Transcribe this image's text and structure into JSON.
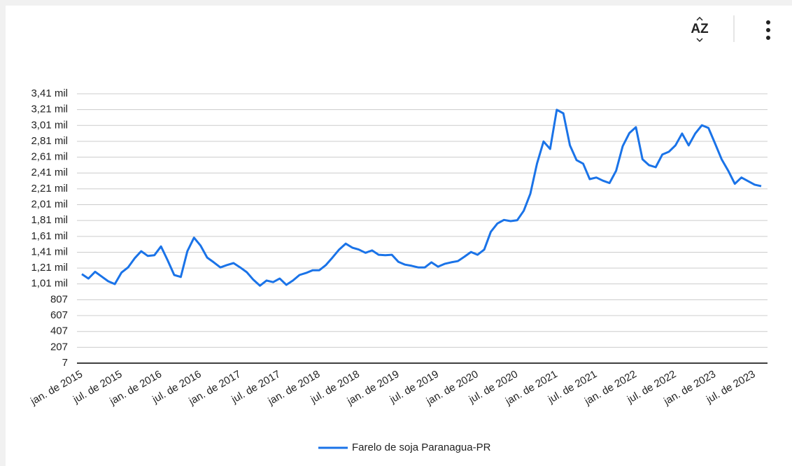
{
  "toolbar": {
    "sort_label": "AZ"
  },
  "chart_data": {
    "type": "line",
    "categories": [
      "jan. de 2015",
      null,
      null,
      null,
      null,
      null,
      "jul. de 2015",
      null,
      null,
      null,
      null,
      null,
      "jan. de 2016",
      null,
      null,
      null,
      null,
      null,
      "jul. de 2016",
      null,
      null,
      null,
      null,
      null,
      "jan. de 2017",
      null,
      null,
      null,
      null,
      null,
      "jul. de 2017",
      null,
      null,
      null,
      null,
      null,
      "jan. de 2018",
      null,
      null,
      null,
      null,
      null,
      "jul. de 2018",
      null,
      null,
      null,
      null,
      null,
      "jan. de 2019",
      null,
      null,
      null,
      null,
      null,
      "jul. de 2019",
      null,
      null,
      null,
      null,
      null,
      "jan. de 2020",
      null,
      null,
      null,
      null,
      null,
      "jul. de 2020",
      null,
      null,
      null,
      null,
      null,
      "jan. de 2021",
      null,
      null,
      null,
      null,
      null,
      "jul. de 2021",
      null,
      null,
      null,
      null,
      null,
      "jan. de 2022",
      null,
      null,
      null,
      null,
      null,
      "jul. de 2022",
      null,
      null,
      null,
      null,
      null,
      "jan. de 2023",
      null,
      null,
      null,
      null,
      null,
      "jul. de 2023",
      null
    ],
    "series": [
      {
        "name": "Farelo de soja Paranagua-PR",
        "color": "#1a73e8",
        "values": [
          1130,
          1075,
          1160,
          1100,
          1040,
          1005,
          1150,
          1215,
          1330,
          1420,
          1360,
          1370,
          1480,
          1305,
          1120,
          1095,
          1420,
          1590,
          1490,
          1340,
          1280,
          1215,
          1245,
          1270,
          1215,
          1155,
          1060,
          985,
          1050,
          1030,
          1075,
          995,
          1050,
          1120,
          1145,
          1180,
          1180,
          1245,
          1340,
          1440,
          1515,
          1465,
          1440,
          1400,
          1430,
          1375,
          1370,
          1375,
          1285,
          1250,
          1235,
          1215,
          1215,
          1280,
          1225,
          1260,
          1280,
          1295,
          1350,
          1410,
          1375,
          1440,
          1665,
          1770,
          1815,
          1800,
          1810,
          1930,
          2145,
          2525,
          2805,
          2710,
          3205,
          3160,
          2755,
          2570,
          2525,
          2330,
          2350,
          2310,
          2280,
          2435,
          2745,
          2910,
          2985,
          2580,
          2505,
          2480,
          2640,
          2675,
          2755,
          2905,
          2755,
          2905,
          3010,
          2975,
          2780,
          2580,
          2435,
          2270,
          2350,
          2305,
          2260,
          2240
        ]
      }
    ],
    "ylim": [
      7,
      3407
    ],
    "yticks": [
      7,
      207,
      407,
      607,
      807,
      {
        "value": 1007,
        "label": "1,01 mil"
      },
      {
        "value": 1207,
        "label": "1,21 mil"
      },
      {
        "value": 1407,
        "label": "1,41 mil"
      },
      {
        "value": 1607,
        "label": "1,61 mil"
      },
      {
        "value": 1807,
        "label": "1,81 mil"
      },
      {
        "value": 2007,
        "label": "2,01 mil"
      },
      {
        "value": 2207,
        "label": "2,21 mil"
      },
      {
        "value": 2407,
        "label": "2,41 mil"
      },
      {
        "value": 2607,
        "label": "2,61 mil"
      },
      {
        "value": 2807,
        "label": "2,81 mil"
      },
      {
        "value": 3007,
        "label": "3,01 mil"
      },
      {
        "value": 3207,
        "label": "3,21 mil"
      },
      {
        "value": 3407,
        "label": "3,41 mil"
      }
    ],
    "grid": true,
    "legend": "bottom"
  }
}
